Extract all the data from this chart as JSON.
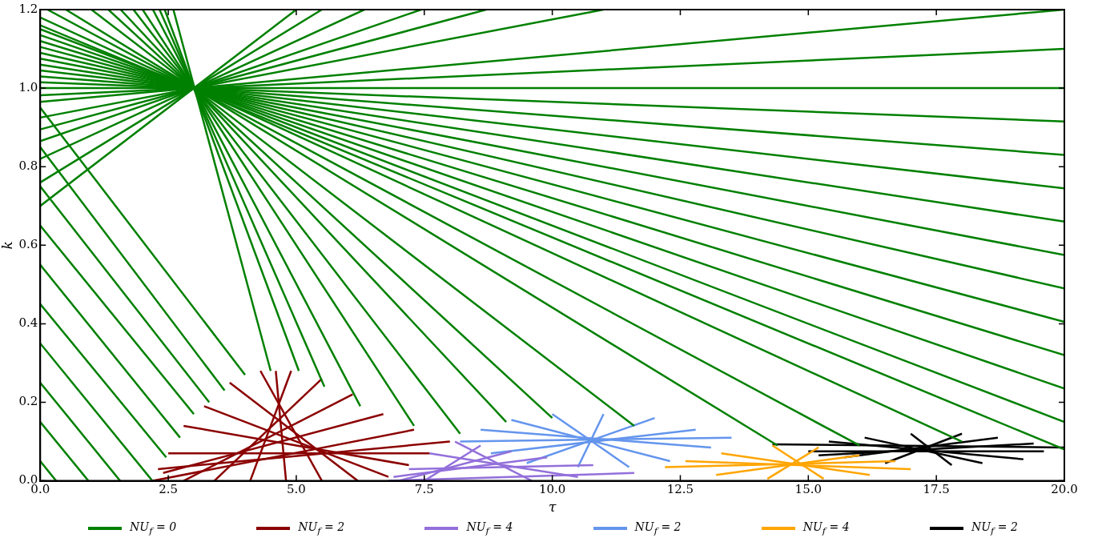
{
  "chart_data": {
    "type": "line",
    "xlabel": "τ",
    "ylabel": "k",
    "xlim": [
      0,
      20
    ],
    "ylim": [
      0,
      1.2
    ],
    "xticks": [
      {
        "value": 0,
        "label": "0.0"
      },
      {
        "value": 2.5,
        "label": "2.5"
      },
      {
        "value": 5,
        "label": "5.0"
      },
      {
        "value": 7.5,
        "label": "7.5"
      },
      {
        "value": 10,
        "label": "10.0"
      },
      {
        "value": 12.5,
        "label": "12.5"
      },
      {
        "value": 15,
        "label": "15.0"
      },
      {
        "value": 17.5,
        "label": "17.5"
      },
      {
        "value": 20,
        "label": "20.0"
      }
    ],
    "yticks": [
      {
        "value": 0,
        "label": "0.0"
      },
      {
        "value": 0.2,
        "label": "0.2"
      },
      {
        "value": 0.4,
        "label": "0.4"
      },
      {
        "value": 0.6,
        "label": "0.6"
      },
      {
        "value": 0.8,
        "label": "0.8"
      },
      {
        "value": 1,
        "label": "1.0"
      },
      {
        "value": 1.2,
        "label": "1.2"
      }
    ],
    "legend": "bottom",
    "line_style": "solid",
    "series": [
      {
        "name": "NU$_{f}$ = 0",
        "color": "#008000",
        "x": [
          0,
          5
        ],
        "values": [
          0.7,
          1.2
        ]
      },
      {
        "color": "#008000",
        "x": [
          0,
          5.5
        ],
        "values": [
          0.76,
          1.2
        ]
      },
      {
        "color": "#008000",
        "x": [
          0,
          6.33
        ],
        "values": [
          0.82,
          1.2
        ]
      },
      {
        "color": "#008000",
        "x": [
          0,
          7.44
        ],
        "values": [
          0.865,
          1.2
        ]
      },
      {
        "color": "#008000",
        "x": [
          0,
          8.71
        ],
        "values": [
          0.895,
          1.2
        ]
      },
      {
        "color": "#008000",
        "x": [
          0,
          11
        ],
        "values": [
          0.925,
          1.2
        ]
      },
      {
        "color": "#008000",
        "x": [
          0,
          20
        ],
        "values": [
          0.965,
          1.2
        ]
      },
      {
        "color": "#008000",
        "x": [
          0,
          20
        ],
        "values": [
          0.982,
          1.1
        ]
      },
      {
        "color": "#008000",
        "x": [
          0,
          20
        ],
        "values": [
          1,
          1
        ]
      },
      {
        "color": "#008000",
        "x": [
          0,
          20
        ],
        "values": [
          1.015,
          0.915
        ]
      },
      {
        "color": "#008000",
        "x": [
          0,
          20
        ],
        "values": [
          1.03,
          0.83
        ]
      },
      {
        "color": "#008000",
        "x": [
          0,
          20
        ],
        "values": [
          1.045,
          0.745
        ]
      },
      {
        "color": "#008000",
        "x": [
          0,
          20
        ],
        "values": [
          1.06,
          0.66
        ]
      },
      {
        "color": "#008000",
        "x": [
          0,
          20
        ],
        "values": [
          1.075,
          0.575
        ]
      },
      {
        "color": "#008000",
        "x": [
          0,
          20
        ],
        "values": [
          1.09,
          0.49
        ]
      },
      {
        "color": "#008000",
        "x": [
          0,
          20
        ],
        "values": [
          1.105,
          0.405
        ]
      },
      {
        "color": "#008000",
        "x": [
          0,
          20
        ],
        "values": [
          1.12,
          0.32
        ]
      },
      {
        "color": "#008000",
        "x": [
          0,
          20
        ],
        "values": [
          1.135,
          0.235
        ]
      },
      {
        "color": "#008000",
        "x": [
          0,
          20
        ],
        "values": [
          1.15,
          0.15
        ]
      },
      {
        "color": "#008000",
        "x": [
          0,
          20
        ],
        "values": [
          1.16,
          0.08
        ]
      },
      {
        "color": "#008000",
        "x": [
          0,
          18
        ],
        "values": [
          1.18,
          0.1
        ]
      },
      {
        "color": "#008000",
        "x": [
          0.14,
          16
        ],
        "values": [
          1.2,
          0.09
        ]
      },
      {
        "color": "#008000",
        "x": [
          0.5,
          14.4
        ],
        "values": [
          1.2,
          0.09
        ]
      },
      {
        "color": "#008000",
        "x": [
          1,
          11.6
        ],
        "values": [
          1.2,
          0.14
        ]
      },
      {
        "color": "#008000",
        "x": [
          1.33,
          10
        ],
        "values": [
          1.2,
          0.16
        ]
      },
      {
        "color": "#008000",
        "x": [
          1.57,
          9.1
        ],
        "values": [
          1.2,
          0.15
        ]
      },
      {
        "color": "#008000",
        "x": [
          1.82,
          8.2
        ],
        "values": [
          1.2,
          0.12
        ]
      },
      {
        "color": "#008000",
        "x": [
          2,
          7.3
        ],
        "values": [
          1.2,
          0.14
        ]
      },
      {
        "color": "#008000",
        "x": [
          2.2,
          6.25
        ],
        "values": [
          1.2,
          0.19
        ]
      },
      {
        "color": "#008000",
        "x": [
          2.33,
          5.55
        ],
        "values": [
          1.2,
          0.24
        ]
      },
      {
        "color": "#008000",
        "x": [
          2.43,
          5.05
        ],
        "values": [
          1.2,
          0.28
        ]
      },
      {
        "color": "#008000",
        "x": [
          2.6,
          4.5
        ],
        "values": [
          1.2,
          0.28
        ]
      },
      {
        "color": "#008000",
        "x": [
          0,
          0.31
        ],
        "values": [
          0.05,
          0
        ]
      },
      {
        "color": "#008000",
        "x": [
          0,
          0.94
        ],
        "values": [
          0.15,
          0
        ]
      },
      {
        "color": "#008000",
        "x": [
          0,
          1.56
        ],
        "values": [
          0.25,
          0
        ]
      },
      {
        "color": "#008000",
        "x": [
          0,
          2.19
        ],
        "values": [
          0.35,
          0
        ]
      },
      {
        "color": "#008000",
        "x": [
          0,
          2.46
        ],
        "values": [
          0.45,
          0.06
        ]
      },
      {
        "color": "#008000",
        "x": [
          0,
          2.73
        ],
        "values": [
          0.55,
          0.11
        ]
      },
      {
        "color": "#008000",
        "x": [
          0,
          3
        ],
        "values": [
          0.65,
          0.17
        ]
      },
      {
        "color": "#008000",
        "x": [
          0,
          3.3
        ],
        "values": [
          0.75,
          0.2
        ]
      },
      {
        "color": "#008000",
        "x": [
          0,
          3.6
        ],
        "values": [
          0.85,
          0.23
        ]
      },
      {
        "color": "#008000",
        "x": [
          0,
          4
        ],
        "values": [
          0.95,
          0.27
        ]
      },
      {
        "name": "NU$_{f}$ = 2",
        "color": "#8b0000",
        "x": [
          4.3,
          5.5
        ],
        "values": [
          0.28,
          0
        ]
      },
      {
        "color": "#8b0000",
        "x": [
          3.7,
          6.2
        ],
        "values": [
          0.25,
          0
        ]
      },
      {
        "color": "#8b0000",
        "x": [
          3.2,
          6.8
        ],
        "values": [
          0.19,
          0.01
        ]
      },
      {
        "color": "#8b0000",
        "x": [
          2.8,
          7.2
        ],
        "values": [
          0.14,
          0.04
        ]
      },
      {
        "color": "#8b0000",
        "x": [
          2.5,
          7.6
        ],
        "values": [
          0.07,
          0.07
        ]
      },
      {
        "color": "#8b0000",
        "x": [
          2.3,
          8
        ],
        "values": [
          0.03,
          0.1
        ]
      },
      {
        "color": "#8b0000",
        "x": [
          2.2,
          7.3
        ],
        "values": [
          0,
          0.13
        ]
      },
      {
        "color": "#8b0000",
        "x": [
          4.9,
          4.1
        ],
        "values": [
          0.28,
          0
        ]
      },
      {
        "color": "#8b0000",
        "x": [
          5.5,
          3.4
        ],
        "values": [
          0.26,
          0
        ]
      },
      {
        "color": "#8b0000",
        "x": [
          6.1,
          2.8
        ],
        "values": [
          0.22,
          0
        ]
      },
      {
        "color": "#8b0000",
        "x": [
          6.7,
          2.4
        ],
        "values": [
          0.17,
          0.02
        ]
      },
      {
        "color": "#8b0000",
        "x": [
          4.6,
          4.8
        ],
        "values": [
          0.28,
          0
        ]
      },
      {
        "name": "NU$_{f}$ = 4",
        "color": "#9370db",
        "x": [
          6.8,
          11.6
        ],
        "values": [
          0,
          0.02
        ]
      },
      {
        "color": "#9370db",
        "x": [
          7.2,
          10.8
        ],
        "values": [
          0.03,
          0.04
        ]
      },
      {
        "color": "#9370db",
        "x": [
          7.6,
          10.5
        ],
        "values": [
          0.07,
          0.01
        ]
      },
      {
        "color": "#9370db",
        "x": [
          8.1,
          9.6
        ],
        "values": [
          0.1,
          0
        ]
      },
      {
        "color": "#9370db",
        "x": [
          8.6,
          7.5
        ],
        "values": [
          0.09,
          0
        ]
      },
      {
        "color": "#9370db",
        "x": [
          9.2,
          7
        ],
        "values": [
          0.075,
          0
        ]
      },
      {
        "color": "#9370db",
        "x": [
          9.9,
          6.9
        ],
        "values": [
          0.06,
          0.01
        ]
      },
      {
        "name": "NU$_{f}$ = 2",
        "color": "#6495ed",
        "x": [
          8.2,
          13.5
        ],
        "values": [
          0.1,
          0.11
        ]
      },
      {
        "color": "#6495ed",
        "x": [
          8.6,
          13.1
        ],
        "values": [
          0.13,
          0.085
        ]
      },
      {
        "color": "#6495ed",
        "x": [
          9.2,
          12.3
        ],
        "values": [
          0.155,
          0.05
        ]
      },
      {
        "color": "#6495ed",
        "x": [
          10,
          11.5
        ],
        "values": [
          0.17,
          0.035
        ]
      },
      {
        "color": "#6495ed",
        "x": [
          11,
          10.5
        ],
        "values": [
          0.17,
          0.035
        ]
      },
      {
        "color": "#6495ed",
        "x": [
          12,
          9.5
        ],
        "values": [
          0.16,
          0.045
        ]
      },
      {
        "color": "#6495ed",
        "x": [
          12.8,
          8.8
        ],
        "values": [
          0.13,
          0.07
        ]
      },
      {
        "name": "NU$_{f}$ = 4",
        "color": "#ffa500",
        "x": [
          12.2,
          16.7
        ],
        "values": [
          0.035,
          0.05
        ]
      },
      {
        "color": "#ffa500",
        "x": [
          12.6,
          17
        ],
        "values": [
          0.05,
          0.03
        ]
      },
      {
        "color": "#ffa500",
        "x": [
          13.3,
          16.2
        ],
        "values": [
          0.07,
          0.015
        ]
      },
      {
        "color": "#ffa500",
        "x": [
          14.3,
          15.3
        ],
        "values": [
          0.09,
          0.005
        ]
      },
      {
        "color": "#ffa500",
        "x": [
          15.2,
          14.2
        ],
        "values": [
          0.085,
          0.005
        ]
      },
      {
        "color": "#ffa500",
        "x": [
          16,
          13.2
        ],
        "values": [
          0.065,
          0.015
        ]
      },
      {
        "name": "NU$_{f}$ = 2",
        "color": "#000000",
        "x": [
          15,
          19.6
        ],
        "values": [
          0.075,
          0.075
        ]
      },
      {
        "color": "#000000",
        "x": [
          15.4,
          19.2
        ],
        "values": [
          0.1,
          0.055
        ]
      },
      {
        "color": "#000000",
        "x": [
          16.1,
          18.4
        ],
        "values": [
          0.11,
          0.045
        ]
      },
      {
        "color": "#000000",
        "x": [
          17,
          17.8
        ],
        "values": [
          0.12,
          0.04
        ]
      },
      {
        "color": "#000000",
        "x": [
          18,
          16.5
        ],
        "values": [
          0.12,
          0.045
        ]
      },
      {
        "color": "#000000",
        "x": [
          18.7,
          15.7
        ],
        "values": [
          0.11,
          0.06
        ]
      },
      {
        "color": "#000000",
        "x": [
          19.4,
          15.2
        ],
        "values": [
          0.095,
          0.065
        ]
      },
      {
        "color": "#000000",
        "x": [
          14.3,
          20
        ],
        "values": [
          0.093,
          0.085
        ]
      }
    ]
  }
}
